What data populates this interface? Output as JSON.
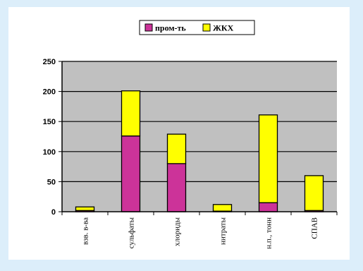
{
  "chart_data": {
    "type": "bar",
    "stacked": true,
    "categories": [
      "взв. в-ва",
      "сульфаты",
      "хлориды",
      "нитраты",
      "н.п., тонн",
      "СПАВ"
    ],
    "series": [
      {
        "name": "пром-ть",
        "color": "#cc3399",
        "values": [
          2,
          126,
          80,
          1,
          15,
          2
        ]
      },
      {
        "name": "ЖКХ",
        "color": "#ffff00",
        "values": [
          6,
          75,
          49,
          11,
          146,
          58
        ]
      }
    ],
    "ylim": [
      0,
      250
    ],
    "yticks": [
      0,
      50,
      100,
      150,
      200,
      250
    ],
    "grid": true,
    "plot_background": "#c0c0c0",
    "legend_position": "top-center"
  }
}
